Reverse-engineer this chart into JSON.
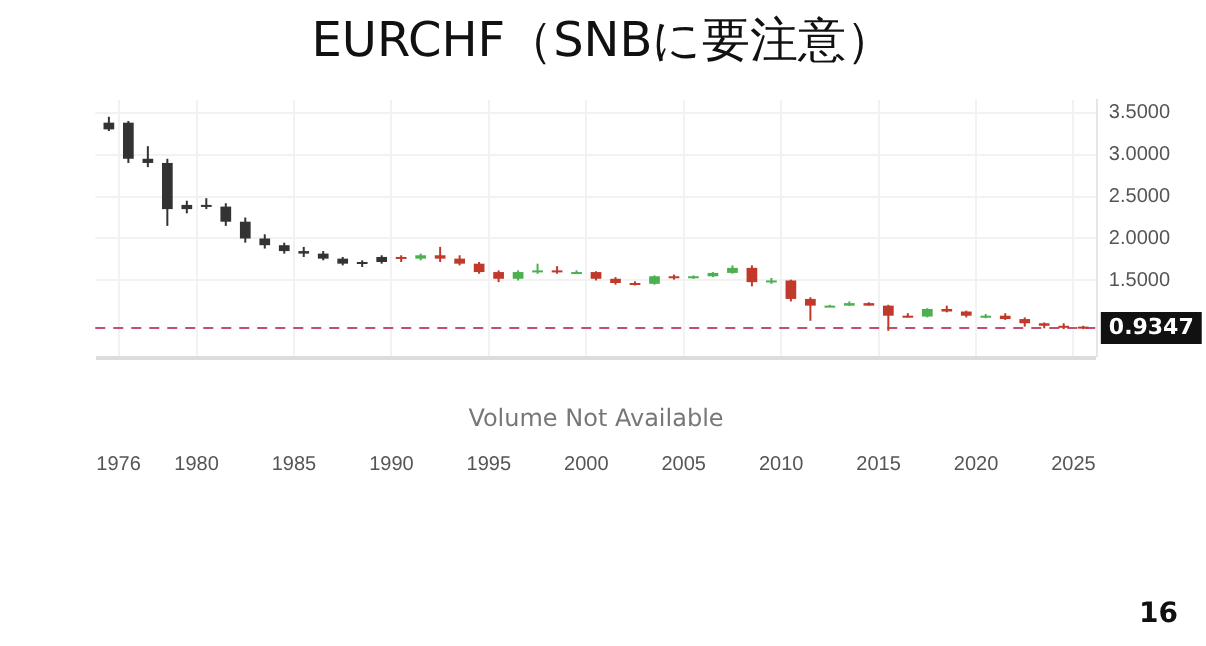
{
  "chart_data": {
    "type": "candlestick",
    "title": "EURCHF（SNBに要注意）",
    "x": [
      1975.5,
      1976.5,
      1977.5,
      1978.5,
      1979.5,
      1980.5,
      1981.5,
      1982.5,
      1983.5,
      1984.5,
      1985.5,
      1986.5,
      1987.5,
      1988.5,
      1989.5,
      1990.5,
      1991.5,
      1992.5,
      1993.5,
      1994.5,
      1995.5,
      1996.5,
      1997.5,
      1998.5,
      1999.5,
      2000.5,
      2001.5,
      2002.5,
      2003.5,
      2004.5,
      2005.5,
      2006.5,
      2007.5,
      2008.5,
      2009.5,
      2010.5,
      2011.5,
      2012.5,
      2013.5,
      2014.5,
      2015.5,
      2016.5,
      2017.5,
      2018.5,
      2019.5,
      2020.5,
      2021.5,
      2022.5,
      2023.5,
      2024.5,
      2025.5
    ],
    "ohlc": [
      [
        3.3,
        3.45,
        3.28,
        3.38
      ],
      [
        3.38,
        3.4,
        2.9,
        2.95
      ],
      [
        2.95,
        3.1,
        2.85,
        2.9
      ],
      [
        2.9,
        2.95,
        2.15,
        2.35
      ],
      [
        2.35,
        2.45,
        2.3,
        2.4
      ],
      [
        2.4,
        2.48,
        2.35,
        2.38
      ],
      [
        2.38,
        2.42,
        2.15,
        2.2
      ],
      [
        2.2,
        2.25,
        1.95,
        2.0
      ],
      [
        2.0,
        2.05,
        1.88,
        1.92
      ],
      [
        1.92,
        1.95,
        1.82,
        1.85
      ],
      [
        1.85,
        1.9,
        1.78,
        1.82
      ],
      [
        1.82,
        1.85,
        1.74,
        1.76
      ],
      [
        1.76,
        1.78,
        1.68,
        1.7
      ],
      [
        1.7,
        1.74,
        1.66,
        1.72
      ],
      [
        1.72,
        1.8,
        1.7,
        1.78
      ],
      [
        1.78,
        1.8,
        1.72,
        1.76
      ],
      [
        1.76,
        1.82,
        1.74,
        1.8
      ],
      [
        1.8,
        1.9,
        1.72,
        1.76
      ],
      [
        1.76,
        1.8,
        1.68,
        1.7
      ],
      [
        1.7,
        1.72,
        1.58,
        1.6
      ],
      [
        1.6,
        1.62,
        1.48,
        1.52
      ],
      [
        1.52,
        1.62,
        1.5,
        1.6
      ],
      [
        1.6,
        1.7,
        1.58,
        1.62
      ],
      [
        1.62,
        1.67,
        1.58,
        1.6
      ],
      [
        1.6,
        1.62,
        1.58,
        1.6
      ],
      [
        1.6,
        1.61,
        1.5,
        1.52
      ],
      [
        1.52,
        1.54,
        1.45,
        1.47
      ],
      [
        1.47,
        1.49,
        1.44,
        1.46
      ],
      [
        1.46,
        1.56,
        1.45,
        1.55
      ],
      [
        1.55,
        1.57,
        1.51,
        1.54
      ],
      [
        1.54,
        1.56,
        1.52,
        1.55
      ],
      [
        1.55,
        1.6,
        1.54,
        1.59
      ],
      [
        1.59,
        1.68,
        1.58,
        1.65
      ],
      [
        1.65,
        1.68,
        1.43,
        1.48
      ],
      [
        1.48,
        1.53,
        1.46,
        1.5
      ],
      [
        1.5,
        1.51,
        1.25,
        1.28
      ],
      [
        1.28,
        1.3,
        1.02,
        1.2
      ],
      [
        1.2,
        1.21,
        1.19,
        1.2
      ],
      [
        1.2,
        1.25,
        1.2,
        1.23
      ],
      [
        1.23,
        1.24,
        1.2,
        1.2
      ],
      [
        1.2,
        1.21,
        0.9,
        1.08
      ],
      [
        1.08,
        1.11,
        1.06,
        1.07
      ],
      [
        1.07,
        1.17,
        1.06,
        1.16
      ],
      [
        1.16,
        1.2,
        1.12,
        1.13
      ],
      [
        1.13,
        1.14,
        1.06,
        1.08
      ],
      [
        1.08,
        1.1,
        1.05,
        1.08
      ],
      [
        1.08,
        1.11,
        1.03,
        1.04
      ],
      [
        1.04,
        1.06,
        0.95,
        0.99
      ],
      [
        0.99,
        1.0,
        0.93,
        0.96
      ],
      [
        0.96,
        0.99,
        0.92,
        0.95
      ],
      [
        0.95,
        0.96,
        0.92,
        0.9347
      ]
    ],
    "colors": [
      "#333333",
      "#333333",
      "#333333",
      "#333333",
      "#333333",
      "#333333",
      "#333333",
      "#333333",
      "#333333",
      "#333333",
      "#333333",
      "#333333",
      "#333333",
      "#333333",
      "#333333",
      "#c0392b",
      "#4caf50",
      "#c0392b",
      "#c0392b",
      "#c0392b",
      "#c0392b",
      "#4caf50",
      "#4caf50",
      "#c0392b",
      "#4caf50",
      "#c0392b",
      "#c0392b",
      "#c0392b",
      "#4caf50",
      "#c0392b",
      "#4caf50",
      "#4caf50",
      "#4caf50",
      "#c0392b",
      "#4caf50",
      "#c0392b",
      "#c0392b",
      "#4caf50",
      "#4caf50",
      "#c0392b",
      "#c0392b",
      "#c0392b",
      "#4caf50",
      "#c0392b",
      "#c0392b",
      "#4caf50",
      "#c0392b",
      "#c0392b",
      "#c0392b",
      "#c0392b",
      "#c0392b"
    ],
    "xlim": [
      1974.8,
      2026.2
    ],
    "xticks": [
      1976,
      1980,
      1985,
      1990,
      1995,
      2000,
      2005,
      2010,
      2015,
      2020,
      2025
    ],
    "ylim": [
      0.6,
      3.65
    ],
    "yticks": [
      {
        "value": 1.5,
        "label": "1.5000"
      },
      {
        "value": 2,
        "label": "2.0000"
      },
      {
        "value": 2.5,
        "label": "2.5000"
      },
      {
        "value": 3,
        "label": "3.0000"
      },
      {
        "value": 3.5,
        "label": "3.5000"
      }
    ],
    "ref_lines": [
      {
        "axis": "y",
        "value": 0.9347,
        "label": "0.9347",
        "color": "#c0506e",
        "line_style": "dashed"
      }
    ],
    "grid": true,
    "legend": false,
    "annotations": [
      "Volume Not Available",
      "16"
    ]
  }
}
